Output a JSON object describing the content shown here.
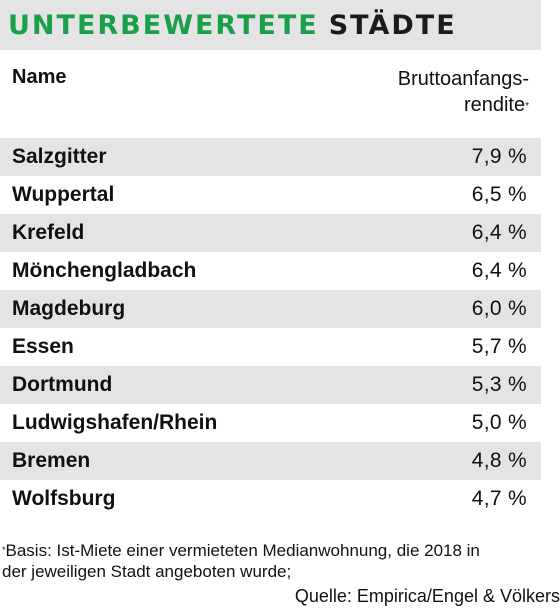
{
  "title": {
    "part1": "UNTERBEWERTETE",
    "part2": "STÄDTE"
  },
  "table": {
    "header": {
      "name": "Name",
      "yield_line1": "Bruttoanfangs-",
      "yield_line2": "rendite",
      "yield_marker": "*"
    },
    "rows": [
      {
        "city": "Salzgitter",
        "value": "7,9 %"
      },
      {
        "city": "Wuppertal",
        "value": "6,5 %"
      },
      {
        "city": "Krefeld",
        "value": "6,4 %"
      },
      {
        "city": "Mönchengladbach",
        "value": "6,4 %"
      },
      {
        "city": "Magdeburg",
        "value": "6,0 %"
      },
      {
        "city": "Essen",
        "value": "5,7 %"
      },
      {
        "city": "Dortmund",
        "value": "5,3 %"
      },
      {
        "city": "Ludwigshafen/Rhein",
        "value": "5,0 %"
      },
      {
        "city": "Bremen",
        "value": "4,8 %"
      },
      {
        "city": "Wolfsburg",
        "value": "4,7 %"
      }
    ]
  },
  "footnote": {
    "marker": "*",
    "line1": "Basis: Ist-Miete einer vermieteten Medianwohnung, die 2018 in",
    "line2": "der jeweiligen Stadt angeboten wurde;"
  },
  "source": "Quelle: Empirica/Engel & Völkers",
  "colors": {
    "accent_green": "#1a9f4a",
    "stripe_gray": "#e4e4e4"
  }
}
